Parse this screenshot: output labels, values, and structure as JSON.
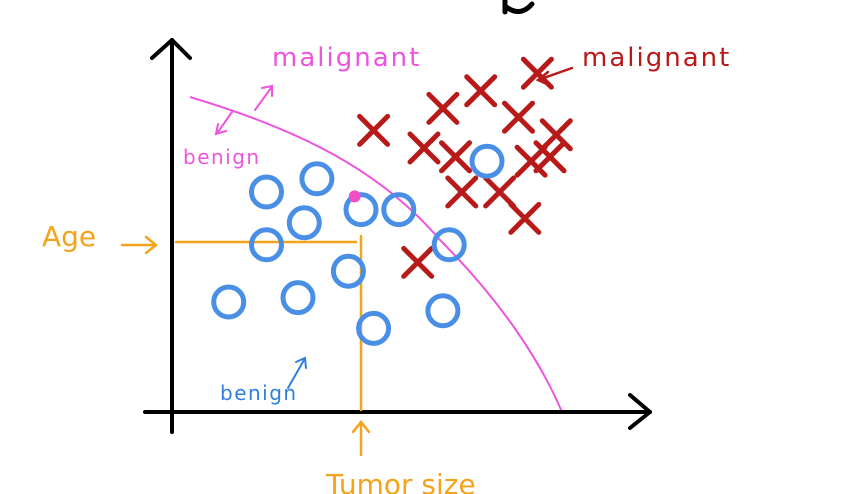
{
  "labels": {
    "malignant_top": "malignant",
    "malignant_right": "malignant",
    "benign_upper": "benign",
    "benign_lower": "benign",
    "age": "Age",
    "tumor_size": "Tumor size"
  },
  "colors": {
    "axis": "#000000",
    "boundary": "#ee55dd",
    "malignant_label": "#ee55dd",
    "malignant_cross": "#b81a1a",
    "benign_circle": "#4a8fe6",
    "benign_label_blue": "#2f7fe0",
    "orange": "#f5a31a",
    "query_point": "#f04fc8"
  },
  "chart_data": {
    "type": "scatter",
    "xlabel": "Tumor size",
    "ylabel": "Age",
    "series": [
      {
        "name": "malignant",
        "marker": "x",
        "points": [
          [
            3.2,
            6.4
          ],
          [
            4.3,
            6.9
          ],
          [
            4.9,
            7.3
          ],
          [
            5.5,
            6.7
          ],
          [
            5.8,
            7.7
          ],
          [
            4.0,
            6.0
          ],
          [
            4.5,
            5.8
          ],
          [
            5.7,
            5.7
          ],
          [
            6.1,
            6.3
          ],
          [
            6.0,
            5.8
          ],
          [
            4.6,
            5.0
          ],
          [
            5.2,
            5.0
          ],
          [
            5.6,
            4.4
          ],
          [
            3.9,
            3.4
          ]
        ]
      },
      {
        "name": "benign",
        "marker": "o",
        "points": [
          [
            1.5,
            5.0
          ],
          [
            2.3,
            5.3
          ],
          [
            5.0,
            5.7
          ],
          [
            2.1,
            4.3
          ],
          [
            3.6,
            4.6
          ],
          [
            3.0,
            4.6
          ],
          [
            1.5,
            3.8
          ],
          [
            4.4,
            3.8
          ],
          [
            2.8,
            3.2
          ],
          [
            0.9,
            2.5
          ],
          [
            2.0,
            2.6
          ],
          [
            4.3,
            2.3
          ],
          [
            3.2,
            1.9
          ]
        ]
      }
    ],
    "query_point": [
      2.9,
      4.9
    ]
  }
}
